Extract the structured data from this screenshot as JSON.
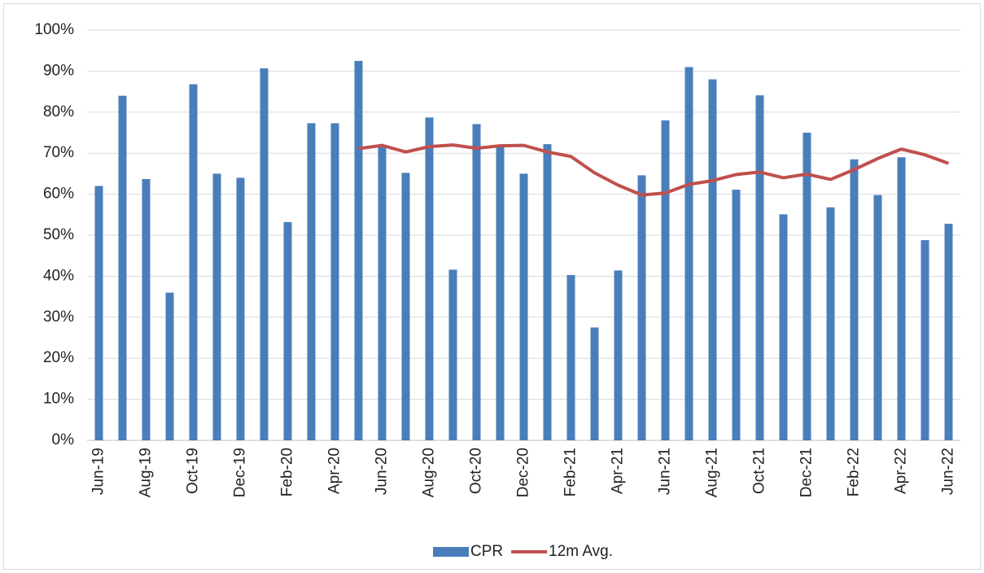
{
  "chart_data": {
    "type": "bar-line",
    "categories": [
      "Jun-19",
      null,
      "Aug-19",
      null,
      "Oct-19",
      null,
      "Dec-19",
      null,
      "Feb-20",
      null,
      "Apr-20",
      null,
      "Jun-20",
      null,
      "Aug-20",
      null,
      "Oct-20",
      null,
      "Dec-20",
      null,
      "Feb-21",
      null,
      "Apr-21",
      null,
      "Jun-21",
      null,
      "Aug-21",
      null,
      "Oct-21",
      null,
      "Dec-21",
      null,
      "Feb-22",
      null,
      "Apr-22",
      null,
      "Jun-22"
    ],
    "series": [
      {
        "name": "CPR",
        "type": "bar",
        "color": "#4a7ebb",
        "values": [
          62,
          84,
          63.7,
          36,
          86.8,
          65,
          64,
          90.7,
          53.2,
          77.3,
          77.3,
          92.5,
          71.5,
          65.2,
          78.7,
          41.6,
          77.1,
          71.5,
          65,
          72.2,
          40.3,
          27.5,
          41.4,
          64.6,
          78,
          91,
          88,
          61.1,
          84.1,
          55.1,
          75,
          56.8,
          68.5,
          59.8,
          69,
          48.8,
          52.8
        ]
      },
      {
        "name": "12m Avg.",
        "type": "line",
        "color": "#c0504d",
        "values": [
          null,
          null,
          null,
          null,
          null,
          null,
          null,
          null,
          null,
          null,
          null,
          71.1,
          71.9,
          70.3,
          71.6,
          72,
          71.2,
          71.8,
          71.9,
          70.3,
          69.2,
          65.2,
          62.2,
          59.8,
          60.3,
          62.4,
          63.3,
          64.8,
          65.4,
          64,
          64.9,
          63.6,
          66,
          68.7,
          71,
          69.6,
          67.5
        ]
      }
    ],
    "ylim": [
      0,
      100
    ],
    "yticks": [
      {
        "value": 0,
        "label": "0%"
      },
      {
        "value": 10,
        "label": "10%"
      },
      {
        "value": 20,
        "label": "20%"
      },
      {
        "value": 30,
        "label": "30%"
      },
      {
        "value": 40,
        "label": "40%"
      },
      {
        "value": 50,
        "label": "50%"
      },
      {
        "value": 60,
        "label": "60%"
      },
      {
        "value": 70,
        "label": "70%"
      },
      {
        "value": 80,
        "label": "80%"
      },
      {
        "value": 90,
        "label": "90%"
      },
      {
        "value": 100,
        "label": "100%"
      }
    ],
    "grid": true,
    "legend": "bottom"
  }
}
